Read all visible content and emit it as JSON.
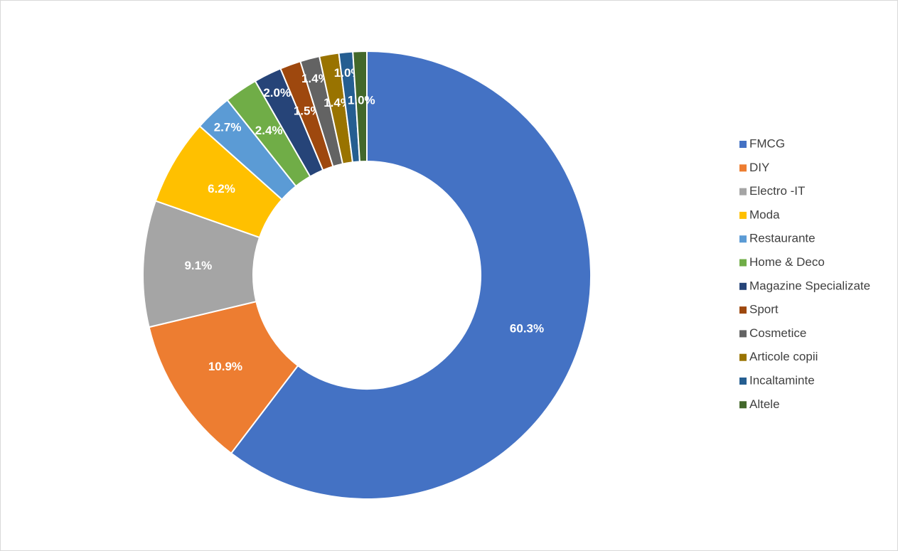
{
  "chart_data": {
    "type": "donut",
    "categories": [
      "FMCG",
      "DIY",
      "Electro -IT",
      "Moda",
      "Restaurante",
      "Home & Deco",
      "Magazine Specializate",
      "Sport",
      "Cosmetice",
      "Articole copii",
      "Incaltaminte",
      "Altele"
    ],
    "values": [
      60.3,
      10.9,
      9.1,
      6.2,
      2.7,
      2.4,
      2.0,
      1.5,
      1.4,
      1.4,
      1.0,
      1.0
    ],
    "value_labels": [
      "60.3%",
      "10.9%",
      "9.1%",
      "6.2%",
      "2.7%",
      "2.4%",
      "2.0%",
      "1.5%",
      "1.4%",
      "1.4%",
      "1.0%",
      "1.0%"
    ],
    "colors": [
      "#4472c4",
      "#ed7d31",
      "#a5a5a5",
      "#ffc000",
      "#5b9bd5",
      "#70ad47",
      "#264478",
      "#9e480e",
      "#636363",
      "#997300",
      "#255e91",
      "#43682b"
    ],
    "legend": "right"
  }
}
